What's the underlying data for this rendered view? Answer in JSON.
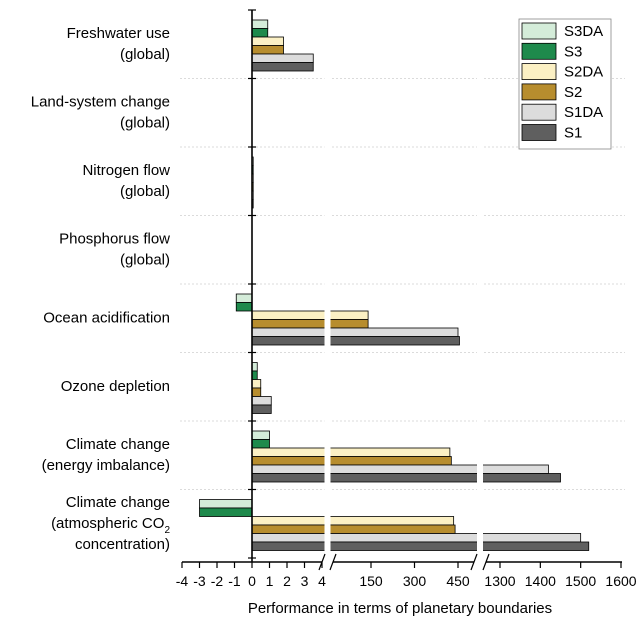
{
  "chart_data": {
    "type": "bar",
    "orientation": "horizontal",
    "xlabel": "Performance in terms of planetary boundaries",
    "x_axis": {
      "broken": true,
      "segments": [
        {
          "range": [
            -4,
            4
          ],
          "ticks": [
            -4,
            -3,
            -2,
            -1,
            0,
            1,
            2,
            3,
            4
          ],
          "tick_labels": [
            "-4",
            "-3",
            "-2",
            "-1",
            "0",
            "1",
            "2",
            "3",
            "4"
          ]
        },
        {
          "range": [
            4,
            500
          ],
          "ticks": [
            150,
            300,
            450
          ],
          "tick_labels": [
            "150",
            "300",
            "450"
          ]
        },
        {
          "range": [
            1200,
            1600
          ],
          "ticks": [
            1300,
            1400,
            1500,
            1600
          ],
          "tick_labels": [
            "1300",
            "1400",
            "1500",
            "1600"
          ]
        }
      ]
    },
    "legend": {
      "position": "top-right",
      "entries": [
        {
          "name": "S3DA",
          "color": "#d4ecd9"
        },
        {
          "name": "S3",
          "color": "#1e8a4c"
        },
        {
          "name": "S2DA",
          "color": "#fbf0c4"
        },
        {
          "name": "S2",
          "color": "#b78d2e"
        },
        {
          "name": "S1DA",
          "color": "#dcdcdc"
        },
        {
          "name": "S1",
          "color": "#5f5f5f"
        }
      ]
    },
    "categories": [
      {
        "line1": "Freshwater use",
        "line2": "(global)",
        "line3": ""
      },
      {
        "line1": "Land-system change",
        "line2": "(global)",
        "line3": ""
      },
      {
        "line1": "Nitrogen flow",
        "line2": "(global)",
        "line3": ""
      },
      {
        "line1": "Phosphorus flow",
        "line2": "(global)",
        "line3": ""
      },
      {
        "line1": "Ocean acidification",
        "line2": "",
        "line3": ""
      },
      {
        "line1": "Ozone depletion",
        "line2": "",
        "line3": ""
      },
      {
        "line1": "Climate change",
        "line2": "(energy imbalance)",
        "line3": ""
      },
      {
        "line1": "Climate change",
        "line2": "(atmospheric CO",
        "line2_sub": "2",
        "line3": "concentration)"
      }
    ],
    "series": [
      {
        "name": "S3DA",
        "color": "#d4ecd9",
        "values": [
          0.9,
          0,
          0.05,
          0,
          -0.9,
          0.3,
          1.0,
          -3.0
        ]
      },
      {
        "name": "S3",
        "color": "#1e8a4c",
        "values": [
          0.9,
          0,
          0.05,
          0,
          -0.9,
          0.3,
          1.0,
          -3.0
        ]
      },
      {
        "name": "S2DA",
        "color": "#fbf0c4",
        "values": [
          1.8,
          0,
          0.05,
          0,
          140,
          0.5,
          422,
          435
        ]
      },
      {
        "name": "S2",
        "color": "#b78d2e",
        "values": [
          1.8,
          0,
          0.05,
          0,
          140,
          0.5,
          427,
          440
        ]
      },
      {
        "name": "S1DA",
        "color": "#dcdcdc",
        "values": [
          3.5,
          0,
          0.05,
          0,
          450,
          1.1,
          1420,
          1500
        ]
      },
      {
        "name": "S1",
        "color": "#5f5f5f",
        "values": [
          3.5,
          0,
          0.05,
          0,
          455,
          1.1,
          1450,
          1520
        ]
      }
    ]
  }
}
